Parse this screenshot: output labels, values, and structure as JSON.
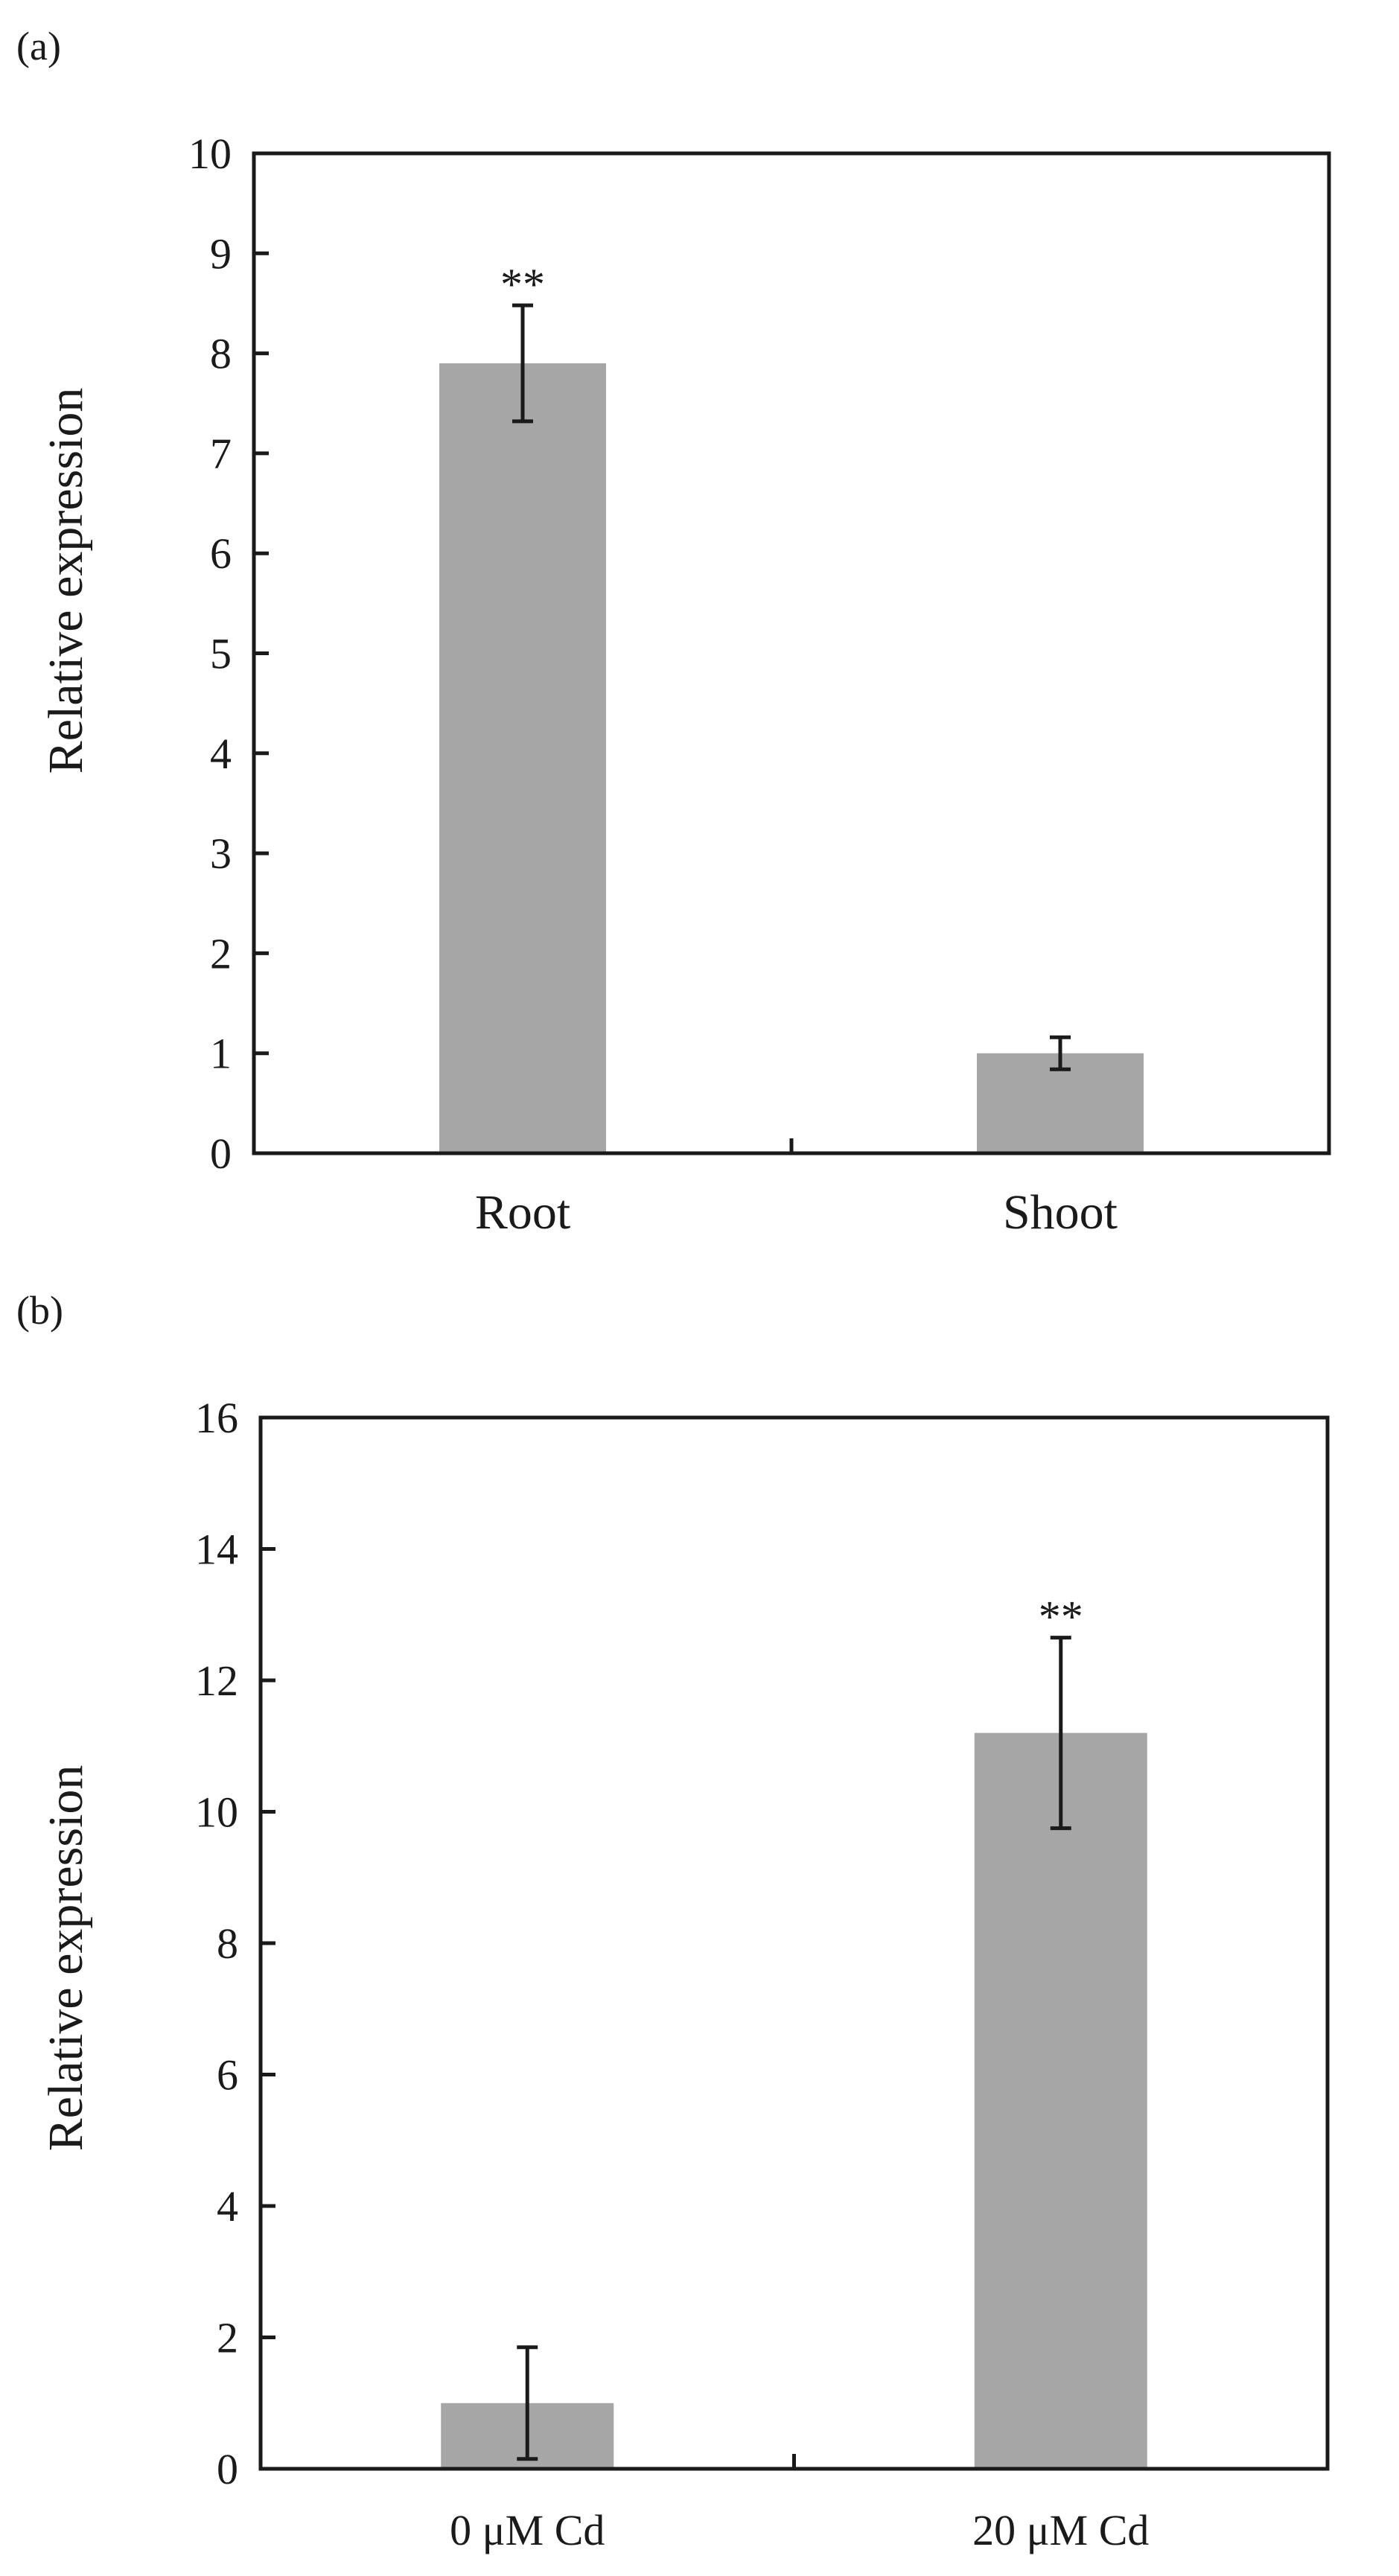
{
  "chart_data": [
    {
      "type": "bar",
      "panel_label": "(a)",
      "categories": [
        "Root",
        "Shoot"
      ],
      "values": [
        7.9,
        1.0
      ],
      "errors": [
        0.58,
        0.16
      ],
      "annotations": [
        "**",
        ""
      ],
      "ylabel": "Relative expression",
      "ylim": [
        0,
        10
      ],
      "yticks": [
        "0",
        "1",
        "2",
        "3",
        "4",
        "5",
        "6",
        "7",
        "8",
        "9",
        "10"
      ],
      "bar_color": "#a6a6a6",
      "grid": false,
      "legend": "none"
    },
    {
      "type": "bar",
      "panel_label": "(b)",
      "categories": [
        "0 μM Cd",
        "20 μM Cd"
      ],
      "values": [
        1.0,
        11.2
      ],
      "errors": [
        0.85,
        1.45
      ],
      "annotations": [
        "",
        "**"
      ],
      "ylabel": "Relative expression",
      "ylim": [
        0,
        16
      ],
      "yticks": [
        "0",
        "2",
        "4",
        "6",
        "8",
        "10",
        "12",
        "14",
        "16"
      ],
      "bar_color": "#a6a6a6",
      "grid": false,
      "legend": "none"
    }
  ]
}
